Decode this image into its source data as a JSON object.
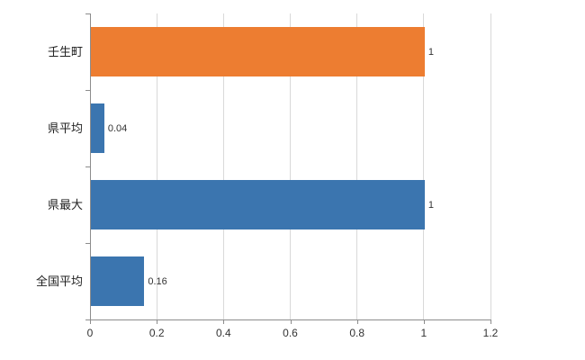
{
  "chart_data": {
    "type": "bar",
    "orientation": "horizontal",
    "title": "",
    "xlabel": "",
    "ylabel": "",
    "categories": [
      "壬生町",
      "県平均",
      "県最大",
      "全国平均"
    ],
    "values": [
      1,
      0.04,
      1,
      0.16
    ],
    "data_labels": [
      "1",
      "0.04",
      "1",
      "0.16"
    ],
    "bar_colors": [
      "#ED7D31",
      "#3B75AF",
      "#3B75AF",
      "#3B75AF"
    ],
    "xlim": [
      0,
      1.2
    ],
    "x_ticks": [
      0,
      0.2,
      0.4,
      0.6,
      0.8,
      1,
      1.2
    ],
    "x_tick_labels": [
      "0",
      "0.2",
      "0.4",
      "0.6",
      "0.8",
      "1",
      "1.2"
    ],
    "grid": true,
    "legend": "none"
  },
  "colors": {
    "orange": "#ED7D31",
    "blue": "#3B75AF",
    "gridline": "#D9D9D9",
    "axis": "#8C8C8C",
    "text": "#333333"
  }
}
